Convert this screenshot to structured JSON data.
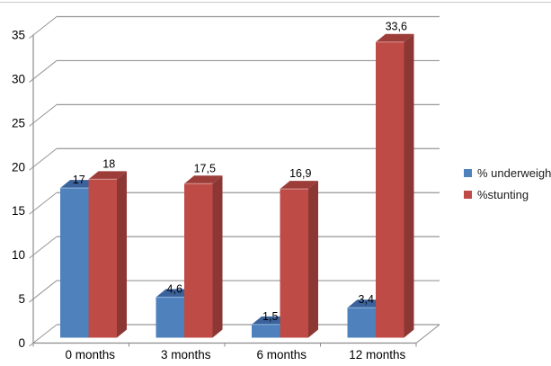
{
  "chart_data": {
    "type": "bar",
    "projection": "3d-clustered-column",
    "title": "",
    "xlabel": "",
    "ylabel": "",
    "categories": [
      "0 months",
      "3 months",
      "6 months",
      "12 months"
    ],
    "series": [
      {
        "name": "% underweight",
        "values": [
          17,
          4.6,
          1.5,
          3.4
        ],
        "labels": [
          "17",
          "4,6",
          "1,5",
          "3,4"
        ],
        "color": "#4F81BD",
        "color_top": "#3B629B",
        "color_side": "#36598C",
        "color_highlight": "#86ACD4"
      },
      {
        "name": "%stunting",
        "values": [
          18,
          17.5,
          16.9,
          33.6
        ],
        "labels": [
          "18",
          "17,5",
          "16,9",
          "33,6"
        ],
        "color": "#BF4B47",
        "color_top": "#9C3D3A",
        "color_side": "#8C3734",
        "color_highlight": "#D18B88"
      }
    ],
    "ylim": [
      0,
      35
    ],
    "ytick_step": 5,
    "ytick_labels": [
      "0",
      "5",
      "10",
      "15",
      "20",
      "25",
      "30",
      "35"
    ],
    "grid": true,
    "legend_position": "right",
    "decimal_separator": ","
  },
  "legend": {
    "items": [
      {
        "label": "% underweight",
        "color": "#4F81BD"
      },
      {
        "label": "%stunting",
        "color": "#BF4B47"
      }
    ]
  },
  "colors": {
    "background": "#FFFFFF",
    "gridline": "#969696",
    "axis": "#8C8C8C",
    "text": "#000000",
    "top_border": "#C9C9C9"
  }
}
